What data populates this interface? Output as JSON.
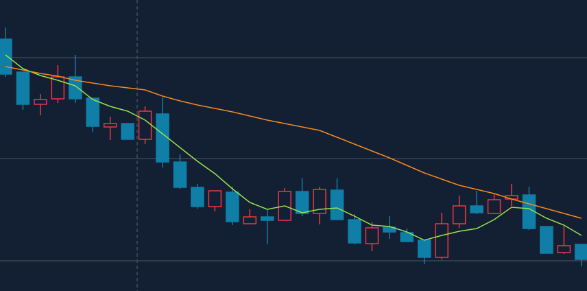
{
  "chart_data": {
    "type": "candlestick",
    "open": [
      367,
      319,
      272,
      280,
      312,
      281,
      239,
      244,
      221,
      258,
      188,
      151,
      123,
      144,
      98,
      108,
      103,
      145,
      113,
      147,
      104,
      69,
      93,
      85,
      74,
      49,
      98,
      124,
      113,
      134,
      140,
      94,
      56,
      68
    ],
    "high": [
      384,
      319,
      287,
      329,
      344,
      281,
      254,
      244,
      269,
      282,
      199,
      156,
      146,
      152,
      119,
      119,
      150,
      165,
      152,
      164,
      112,
      100,
      109,
      91,
      74,
      114,
      139,
      146,
      142,
      156,
      152,
      94,
      94,
      68
    ],
    "low": [
      312,
      264,
      256,
      274,
      274,
      232,
      220,
      221,
      214,
      180,
      149,
      120,
      116,
      96,
      98,
      68,
      103,
      109,
      97,
      104,
      68,
      58,
      76,
      72,
      39,
      46,
      92,
      112,
      112,
      124,
      89,
      55,
      54,
      36
    ],
    "close": [
      316,
      272,
      279,
      312,
      280,
      240,
      244,
      221,
      262,
      188,
      151,
      123,
      146,
      101,
      108,
      103,
      145,
      113,
      148,
      104,
      70,
      92,
      86,
      72,
      49,
      98,
      124,
      114,
      133,
      139,
      91,
      55,
      66,
      46
    ],
    "up_color": "#f23645",
    "down_color": "#0f7fa8",
    "moving_averages": [
      {
        "color": "#9be34a",
        "values": [
          344,
          324,
          314,
          307,
          299,
          279,
          269,
          262,
          249,
          229,
          209,
          189,
          171,
          149,
          129,
          119,
          124,
          114,
          119,
          121,
          109,
          96,
          94,
          86,
          74,
          81,
          87,
          91,
          104,
          122,
          120,
          106,
          96,
          81
        ]
      },
      {
        "color": "#f7891f",
        "values": [
          327,
          322,
          317,
          313,
          307,
          303,
          299,
          296,
          293,
          284,
          277,
          271,
          266,
          261,
          255,
          249,
          244,
          239,
          234,
          224,
          214,
          204,
          194,
          183,
          172,
          163,
          154,
          148,
          142,
          134,
          127,
          120,
          113,
          106
        ]
      }
    ],
    "ylim": [
      0,
      424
    ],
    "yticks": [
      44,
      193,
      340
    ],
    "grid": true
  }
}
